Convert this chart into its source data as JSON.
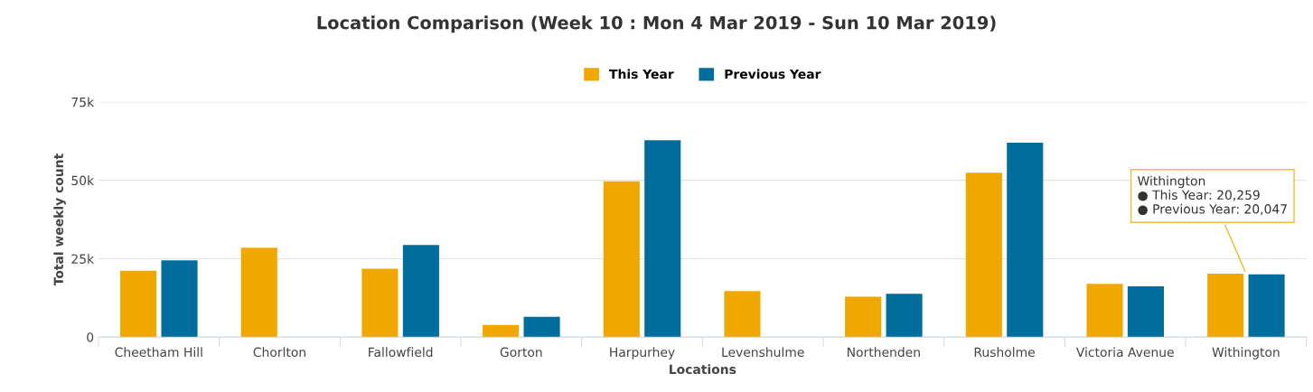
{
  "chart_data": {
    "type": "bar",
    "title": "Location Comparison (Week 10 : Mon 4 Mar 2019 - Sun 10 Mar 2019)",
    "xlabel": "Locations",
    "ylabel": "Total weekly count",
    "categories": [
      "Cheetham Hill",
      "Chorlton",
      "Fallowfield",
      "Gorton",
      "Harpurhey",
      "Levenshulme",
      "Northenden",
      "Rusholme",
      "Victoria Avenue",
      "Withington"
    ],
    "series": [
      {
        "name": "This Year",
        "color": "#f0a800",
        "values": [
          21200,
          28500,
          21800,
          3900,
          49700,
          14700,
          12900,
          52400,
          17000,
          20259
        ]
      },
      {
        "name": "Previous Year",
        "color": "#006d9c",
        "values": [
          24500,
          null,
          29400,
          6500,
          62800,
          null,
          13800,
          62000,
          16200,
          20047
        ]
      }
    ],
    "ylim": [
      0,
      75000
    ],
    "yticks": [
      {
        "value": 0,
        "label": "0"
      },
      {
        "value": 25000,
        "label": "25k"
      },
      {
        "value": 50000,
        "label": "50k"
      },
      {
        "value": 75000,
        "label": "75k"
      }
    ],
    "grid": "y",
    "legend": "top",
    "annotations": [
      {
        "text": "Withington\n● This Year: 20,259\n● Previous Year: 20,047",
        "x": "Withington",
        "y": 20259
      }
    ]
  }
}
